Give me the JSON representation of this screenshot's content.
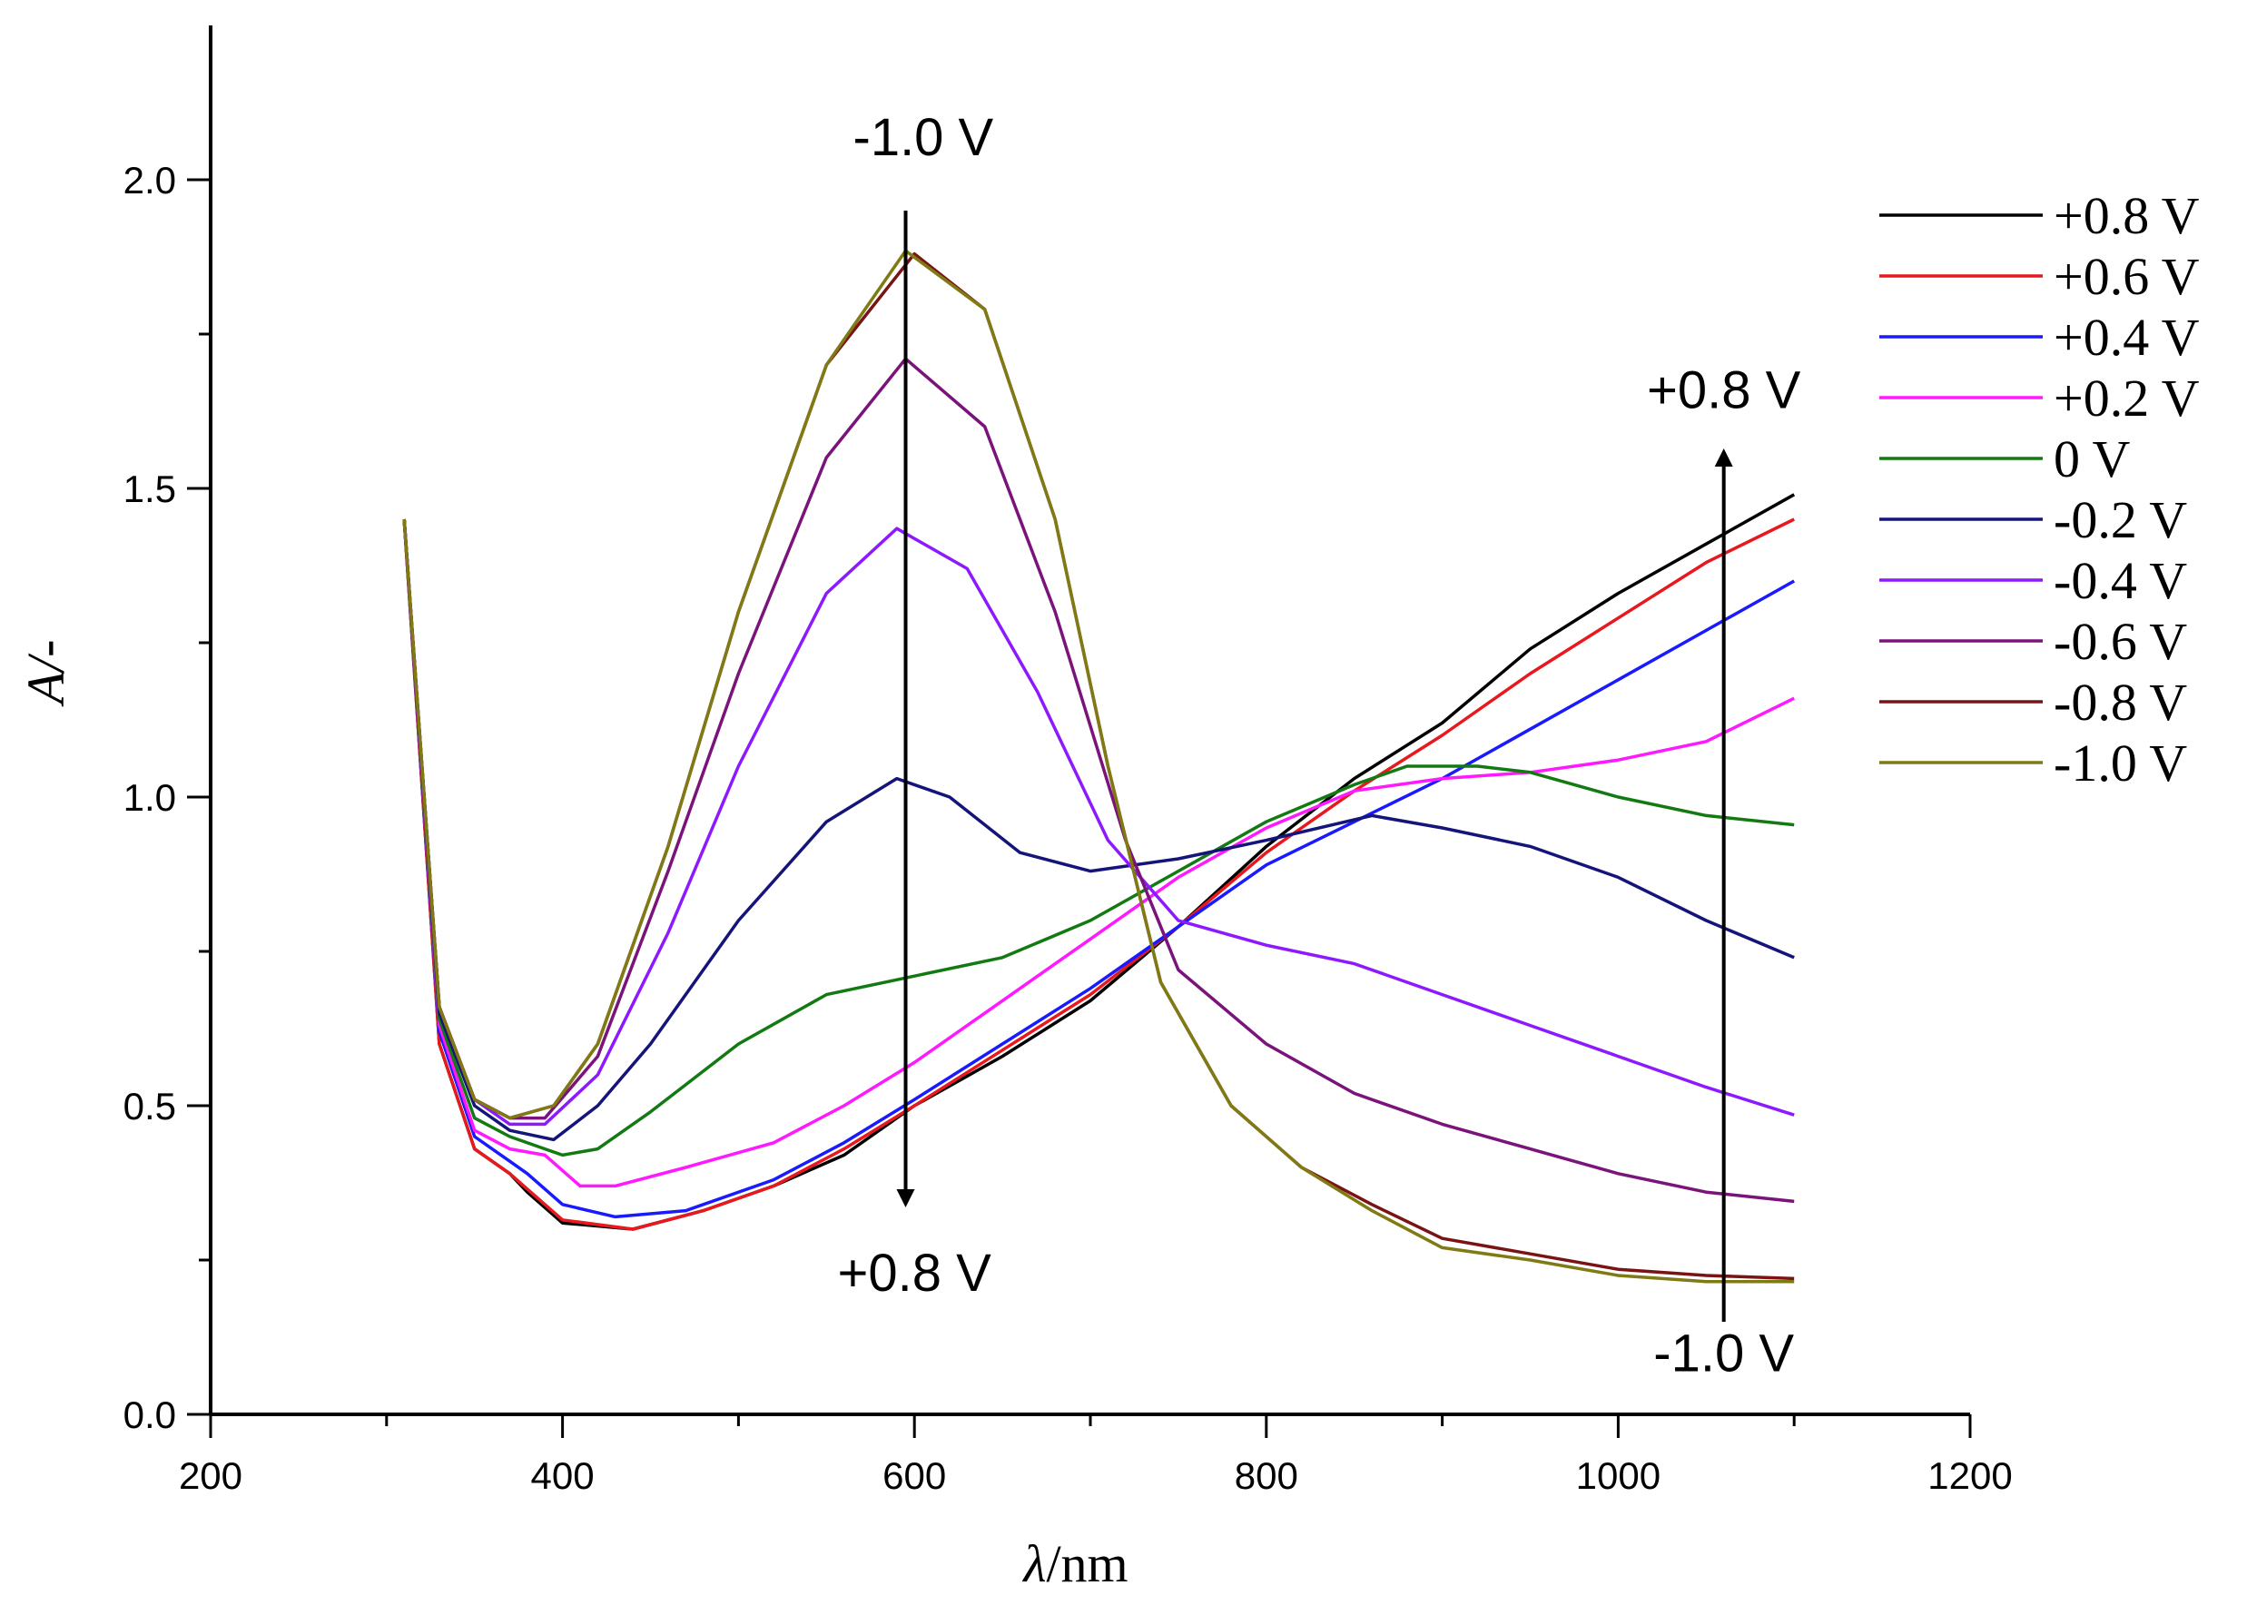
{
  "chart_data": {
    "type": "line",
    "title": "",
    "xlabel_symbol": "λ",
    "xlabel_unit": "/nm",
    "ylabel": "A/-",
    "xlim": [
      200,
      1200
    ],
    "ylim": [
      0,
      2.25
    ],
    "x_ticks": [
      200,
      400,
      600,
      800,
      1000,
      1200
    ],
    "y_ticks": [
      0.0,
      0.5,
      1.0,
      1.5,
      2.0
    ],
    "x_tick_labels": [
      "200",
      "400",
      "600",
      "800",
      "1000",
      "1200"
    ],
    "y_tick_labels": [
      "0.0",
      "0.5",
      "1.0",
      "1.5",
      "2.0"
    ],
    "grid": false,
    "legend_position": "right",
    "series": [
      {
        "name": "+0.8 V",
        "color": "#000000",
        "points": [
          [
            310,
            1.45
          ],
          [
            330,
            0.6
          ],
          [
            350,
            0.43
          ],
          [
            370,
            0.39
          ],
          [
            380,
            0.36
          ],
          [
            400,
            0.31
          ],
          [
            440,
            0.3
          ],
          [
            480,
            0.33
          ],
          [
            520,
            0.37
          ],
          [
            560,
            0.42
          ],
          [
            600,
            0.5
          ],
          [
            650,
            0.58
          ],
          [
            700,
            0.67
          ],
          [
            750,
            0.79
          ],
          [
            800,
            0.92
          ],
          [
            850,
            1.03
          ],
          [
            900,
            1.12
          ],
          [
            950,
            1.24
          ],
          [
            1000,
            1.33
          ],
          [
            1050,
            1.41
          ],
          [
            1100,
            1.49
          ]
        ]
      },
      {
        "name": "+0.6 V",
        "color": "#e8191e",
        "points": [
          [
            310,
            1.45
          ],
          [
            330,
            0.6
          ],
          [
            350,
            0.43
          ],
          [
            370,
            0.39
          ],
          [
            380,
            0.365
          ],
          [
            400,
            0.315
          ],
          [
            440,
            0.3
          ],
          [
            480,
            0.33
          ],
          [
            520,
            0.37
          ],
          [
            560,
            0.43
          ],
          [
            600,
            0.5
          ],
          [
            650,
            0.59
          ],
          [
            700,
            0.68
          ],
          [
            750,
            0.79
          ],
          [
            800,
            0.91
          ],
          [
            850,
            1.01
          ],
          [
            900,
            1.1
          ],
          [
            950,
            1.2
          ],
          [
            1000,
            1.29
          ],
          [
            1050,
            1.38
          ],
          [
            1100,
            1.45
          ]
        ]
      },
      {
        "name": "+0.4 V",
        "color": "#1a1aff",
        "points": [
          [
            310,
            1.45
          ],
          [
            330,
            0.62
          ],
          [
            350,
            0.45
          ],
          [
            370,
            0.41
          ],
          [
            380,
            0.39
          ],
          [
            400,
            0.34
          ],
          [
            430,
            0.32
          ],
          [
            470,
            0.33
          ],
          [
            520,
            0.38
          ],
          [
            560,
            0.44
          ],
          [
            600,
            0.51
          ],
          [
            650,
            0.6
          ],
          [
            700,
            0.69
          ],
          [
            750,
            0.79
          ],
          [
            800,
            0.89
          ],
          [
            850,
            0.96
          ],
          [
            900,
            1.03
          ],
          [
            950,
            1.11
          ],
          [
            1000,
            1.19
          ],
          [
            1050,
            1.27
          ],
          [
            1100,
            1.35
          ]
        ]
      },
      {
        "name": "+0.2 V",
        "color": "#ff19ff",
        "points": [
          [
            310,
            1.45
          ],
          [
            330,
            0.63
          ],
          [
            350,
            0.46
          ],
          [
            370,
            0.43
          ],
          [
            390,
            0.42
          ],
          [
            410,
            0.37
          ],
          [
            430,
            0.37
          ],
          [
            470,
            0.4
          ],
          [
            520,
            0.44
          ],
          [
            560,
            0.5
          ],
          [
            600,
            0.57
          ],
          [
            650,
            0.67
          ],
          [
            700,
            0.77
          ],
          [
            750,
            0.87
          ],
          [
            800,
            0.95
          ],
          [
            850,
            1.01
          ],
          [
            900,
            1.03
          ],
          [
            950,
            1.04
          ],
          [
            1000,
            1.06
          ],
          [
            1050,
            1.09
          ],
          [
            1100,
            1.16
          ]
        ]
      },
      {
        "name": "0 V",
        "color": "#137a13",
        "points": [
          [
            310,
            1.45
          ],
          [
            330,
            0.64
          ],
          [
            350,
            0.48
          ],
          [
            370,
            0.45
          ],
          [
            390,
            0.43
          ],
          [
            400,
            0.42
          ],
          [
            420,
            0.43
          ],
          [
            450,
            0.49
          ],
          [
            500,
            0.6
          ],
          [
            550,
            0.68
          ],
          [
            600,
            0.71
          ],
          [
            650,
            0.74
          ],
          [
            700,
            0.8
          ],
          [
            750,
            0.88
          ],
          [
            800,
            0.96
          ],
          [
            850,
            1.02
          ],
          [
            880,
            1.05
          ],
          [
            920,
            1.05
          ],
          [
            950,
            1.04
          ],
          [
            1000,
            1.0
          ],
          [
            1050,
            0.97
          ],
          [
            1100,
            0.955
          ]
        ]
      },
      {
        "name": "-0.2 V",
        "color": "#14147a",
        "points": [
          [
            310,
            1.45
          ],
          [
            330,
            0.65
          ],
          [
            350,
            0.5
          ],
          [
            370,
            0.46
          ],
          [
            395,
            0.445
          ],
          [
            420,
            0.5
          ],
          [
            450,
            0.6
          ],
          [
            500,
            0.8
          ],
          [
            550,
            0.96
          ],
          [
            590,
            1.03
          ],
          [
            620,
            1.0
          ],
          [
            660,
            0.91
          ],
          [
            700,
            0.88
          ],
          [
            750,
            0.9
          ],
          [
            800,
            0.93
          ],
          [
            860,
            0.97
          ],
          [
            900,
            0.95
          ],
          [
            950,
            0.92
          ],
          [
            1000,
            0.87
          ],
          [
            1050,
            0.8
          ],
          [
            1100,
            0.74
          ]
        ]
      },
      {
        "name": "-0.4 V",
        "color": "#8c19ff",
        "points": [
          [
            310,
            1.45
          ],
          [
            330,
            0.66
          ],
          [
            350,
            0.51
          ],
          [
            370,
            0.47
          ],
          [
            390,
            0.47
          ],
          [
            420,
            0.55
          ],
          [
            460,
            0.78
          ],
          [
            500,
            1.05
          ],
          [
            550,
            1.33
          ],
          [
            590,
            1.435
          ],
          [
            630,
            1.37
          ],
          [
            670,
            1.17
          ],
          [
            710,
            0.93
          ],
          [
            750,
            0.8
          ],
          [
            800,
            0.76
          ],
          [
            850,
            0.73
          ],
          [
            900,
            0.68
          ],
          [
            950,
            0.63
          ],
          [
            1000,
            0.58
          ],
          [
            1050,
            0.53
          ],
          [
            1100,
            0.485
          ]
        ]
      },
      {
        "name": "-0.6 V",
        "color": "#7a137a",
        "points": [
          [
            310,
            1.45
          ],
          [
            330,
            0.66
          ],
          [
            350,
            0.51
          ],
          [
            370,
            0.48
          ],
          [
            390,
            0.48
          ],
          [
            420,
            0.58
          ],
          [
            460,
            0.88
          ],
          [
            500,
            1.2
          ],
          [
            550,
            1.55
          ],
          [
            595,
            1.71
          ],
          [
            640,
            1.6
          ],
          [
            680,
            1.3
          ],
          [
            720,
            0.93
          ],
          [
            750,
            0.72
          ],
          [
            800,
            0.6
          ],
          [
            850,
            0.52
          ],
          [
            900,
            0.47
          ],
          [
            950,
            0.43
          ],
          [
            1000,
            0.39
          ],
          [
            1050,
            0.36
          ],
          [
            1100,
            0.345
          ]
        ]
      },
      {
        "name": "-0.8 V",
        "color": "#7a1414",
        "points": [
          [
            310,
            1.45
          ],
          [
            330,
            0.66
          ],
          [
            350,
            0.51
          ],
          [
            370,
            0.48
          ],
          [
            395,
            0.5
          ],
          [
            420,
            0.6
          ],
          [
            460,
            0.92
          ],
          [
            500,
            1.3
          ],
          [
            550,
            1.7
          ],
          [
            600,
            1.88
          ],
          [
            640,
            1.79
          ],
          [
            680,
            1.45
          ],
          [
            710,
            1.05
          ],
          [
            740,
            0.7
          ],
          [
            780,
            0.5
          ],
          [
            820,
            0.4
          ],
          [
            860,
            0.34
          ],
          [
            900,
            0.285
          ],
          [
            950,
            0.26
          ],
          [
            1000,
            0.235
          ],
          [
            1050,
            0.225
          ],
          [
            1100,
            0.22
          ]
        ]
      },
      {
        "name": "-1.0 V",
        "color": "#807a14",
        "points": [
          [
            310,
            1.45
          ],
          [
            330,
            0.66
          ],
          [
            350,
            0.51
          ],
          [
            370,
            0.48
          ],
          [
            395,
            0.5
          ],
          [
            420,
            0.6
          ],
          [
            460,
            0.92
          ],
          [
            500,
            1.3
          ],
          [
            550,
            1.7
          ],
          [
            595,
            1.885
          ],
          [
            640,
            1.79
          ],
          [
            680,
            1.45
          ],
          [
            710,
            1.05
          ],
          [
            740,
            0.7
          ],
          [
            780,
            0.5
          ],
          [
            820,
            0.4
          ],
          [
            860,
            0.33
          ],
          [
            900,
            0.27
          ],
          [
            950,
            0.25
          ],
          [
            1000,
            0.225
          ],
          [
            1050,
            0.215
          ],
          [
            1100,
            0.215
          ]
        ]
      }
    ],
    "annotations": [
      {
        "text": "-1.0 V",
        "x": 605,
        "y": 2.04
      },
      {
        "text": "+0.8 V",
        "x": 600,
        "y": 0.2
      },
      {
        "text": "+0.8 V",
        "x": 1060,
        "y": 1.63
      },
      {
        "text": "-1.0 V",
        "x": 1060,
        "y": 0.07
      }
    ],
    "arrows": [
      {
        "direction": "down",
        "x": 595,
        "from": 1.95,
        "to": 0.35
      },
      {
        "direction": "up",
        "x": 1060,
        "from": 0.15,
        "to": 1.55
      }
    ]
  }
}
